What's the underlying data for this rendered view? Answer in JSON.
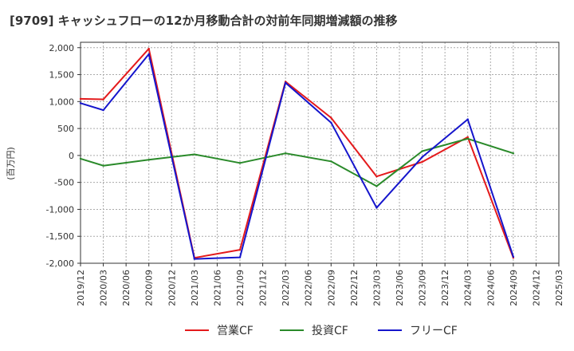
{
  "chart_data": {
    "type": "line",
    "title": "[9709]  キャッシュフローの12か月移動合計の対前年同期増減額の推移",
    "ylabel": "(百万円)",
    "xlabel": "",
    "ylim": [
      -2000,
      2100
    ],
    "yticks": [
      2000,
      1500,
      1000,
      500,
      0,
      -500,
      -1000,
      -1500,
      -2000
    ],
    "ytick_labels": [
      "2,000",
      "1,500",
      "1,000",
      "500",
      "0",
      "-500",
      "-1,000",
      "-1,500",
      "-2,000"
    ],
    "categories": [
      "2019/12",
      "2020/03",
      "2020/06",
      "2020/09",
      "2020/12",
      "2021/03",
      "2021/06",
      "2021/09",
      "2021/12",
      "2022/03",
      "2022/06",
      "2022/09",
      "2022/12",
      "2023/03",
      "2023/06",
      "2023/09",
      "2023/12",
      "2024/03",
      "2024/06",
      "2024/09",
      "2024/12",
      "2025/03"
    ],
    "grid": true,
    "legend_position": "bottom",
    "series": [
      {
        "name": "営業CF",
        "color": "#e41a1c",
        "values": [
          1050,
          1040,
          null,
          1980,
          null,
          -1900,
          null,
          -1750,
          null,
          1370,
          null,
          700,
          null,
          -390,
          null,
          -120,
          null,
          340,
          null,
          -1900,
          null,
          null
        ]
      },
      {
        "name": "投資CF",
        "color": "#2a8a2a",
        "values": [
          -60,
          -190,
          null,
          -80,
          null,
          20,
          null,
          -140,
          null,
          40,
          null,
          -110,
          null,
          -570,
          null,
          80,
          null,
          310,
          null,
          40,
          null,
          null
        ]
      },
      {
        "name": "フリーCF",
        "color": "#1515cc",
        "values": [
          970,
          840,
          null,
          1880,
          null,
          -1920,
          null,
          -1890,
          null,
          1350,
          null,
          610,
          null,
          -970,
          null,
          -30,
          null,
          670,
          null,
          -1880,
          null,
          null
        ]
      }
    ]
  }
}
